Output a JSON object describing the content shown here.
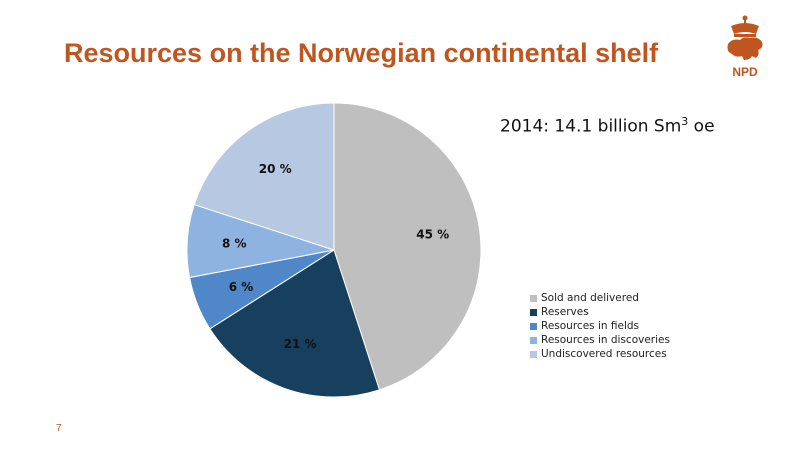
{
  "slide": {
    "title": "Resources on the Norwegian continental shelf",
    "page_number": "7",
    "logo_text": "NPD",
    "accent_color": "#c0561f"
  },
  "chart_data": {
    "type": "pie",
    "subtitle": {
      "year": "2014: 14.1 billion Sm",
      "sup": "3",
      "suffix": " oe"
    },
    "categories": [
      "Sold and delivered",
      "Reserves",
      "Resources in fields",
      "Resources in discoveries",
      "Undiscovered resources"
    ],
    "values": [
      45,
      21,
      6,
      8,
      20
    ],
    "labels": [
      "45 %",
      "21 %",
      "6 %",
      "8 %",
      "20 %"
    ],
    "colors": [
      "#bfbfbf",
      "#17405f",
      "#4f87c8",
      "#8fb3e0",
      "#b7c8e3"
    ],
    "legend_position": "right"
  }
}
